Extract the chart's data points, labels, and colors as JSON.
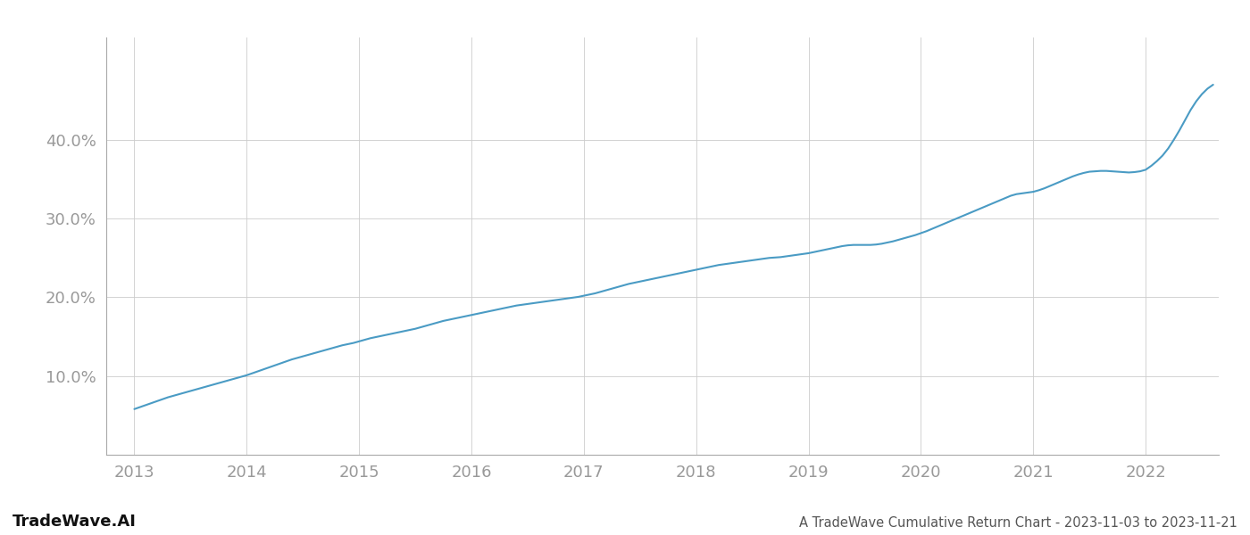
{
  "title": "A TradeWave Cumulative Return Chart - 2023-11-03 to 2023-11-21",
  "watermark": "TradeWave.AI",
  "line_color": "#4a9bc4",
  "background_color": "#ffffff",
  "grid_color": "#cccccc",
  "x_years": [
    2013,
    2014,
    2015,
    2016,
    2017,
    2018,
    2019,
    2020,
    2021,
    2022
  ],
  "data_x": [
    2013.0,
    2013.05,
    2013.1,
    2013.15,
    2013.2,
    2013.25,
    2013.3,
    2013.35,
    2013.4,
    2013.45,
    2013.5,
    2013.55,
    2013.6,
    2013.65,
    2013.7,
    2013.75,
    2013.8,
    2013.85,
    2013.9,
    2013.95,
    2014.0,
    2014.05,
    2014.1,
    2014.15,
    2014.2,
    2014.25,
    2014.3,
    2014.35,
    2014.4,
    2014.45,
    2014.5,
    2014.55,
    2014.6,
    2014.65,
    2014.7,
    2014.75,
    2014.8,
    2014.85,
    2014.9,
    2014.95,
    2015.0,
    2015.05,
    2015.1,
    2015.15,
    2015.2,
    2015.25,
    2015.3,
    2015.35,
    2015.4,
    2015.45,
    2015.5,
    2015.55,
    2015.6,
    2015.65,
    2015.7,
    2015.75,
    2015.8,
    2015.85,
    2015.9,
    2015.95,
    2016.0,
    2016.05,
    2016.1,
    2016.15,
    2016.2,
    2016.25,
    2016.3,
    2016.35,
    2016.4,
    2016.45,
    2016.5,
    2016.55,
    2016.6,
    2016.65,
    2016.7,
    2016.75,
    2016.8,
    2016.85,
    2016.9,
    2016.95,
    2017.0,
    2017.05,
    2017.1,
    2017.15,
    2017.2,
    2017.25,
    2017.3,
    2017.35,
    2017.4,
    2017.45,
    2017.5,
    2017.55,
    2017.6,
    2017.65,
    2017.7,
    2017.75,
    2017.8,
    2017.85,
    2017.9,
    2017.95,
    2018.0,
    2018.05,
    2018.1,
    2018.15,
    2018.2,
    2018.25,
    2018.3,
    2018.35,
    2018.4,
    2018.45,
    2018.5,
    2018.55,
    2018.6,
    2018.65,
    2018.7,
    2018.75,
    2018.8,
    2018.85,
    2018.9,
    2018.95,
    2019.0,
    2019.05,
    2019.1,
    2019.15,
    2019.2,
    2019.25,
    2019.3,
    2019.35,
    2019.4,
    2019.45,
    2019.5,
    2019.55,
    2019.6,
    2019.65,
    2019.7,
    2019.75,
    2019.8,
    2019.85,
    2019.9,
    2019.95,
    2020.0,
    2020.05,
    2020.1,
    2020.15,
    2020.2,
    2020.25,
    2020.3,
    2020.35,
    2020.4,
    2020.45,
    2020.5,
    2020.55,
    2020.6,
    2020.65,
    2020.7,
    2020.75,
    2020.8,
    2020.85,
    2020.9,
    2020.95,
    2021.0,
    2021.05,
    2021.1,
    2021.15,
    2021.2,
    2021.25,
    2021.3,
    2021.35,
    2021.4,
    2021.45,
    2021.5,
    2021.55,
    2021.6,
    2021.65,
    2021.7,
    2021.75,
    2021.8,
    2021.85,
    2021.9,
    2021.95,
    2022.0,
    2022.05,
    2022.1,
    2022.15,
    2022.2,
    2022.25,
    2022.3,
    2022.35,
    2022.4,
    2022.45,
    2022.5,
    2022.55,
    2022.6
  ],
  "data_y": [
    5.8,
    6.05,
    6.3,
    6.55,
    6.8,
    7.05,
    7.3,
    7.5,
    7.7,
    7.9,
    8.1,
    8.3,
    8.5,
    8.7,
    8.9,
    9.1,
    9.3,
    9.5,
    9.7,
    9.9,
    10.1,
    10.35,
    10.6,
    10.85,
    11.1,
    11.35,
    11.6,
    11.85,
    12.1,
    12.3,
    12.5,
    12.7,
    12.9,
    13.1,
    13.3,
    13.5,
    13.7,
    13.9,
    14.05,
    14.2,
    14.4,
    14.6,
    14.8,
    14.95,
    15.1,
    15.25,
    15.4,
    15.55,
    15.7,
    15.85,
    16.0,
    16.2,
    16.4,
    16.6,
    16.8,
    17.0,
    17.15,
    17.3,
    17.45,
    17.6,
    17.75,
    17.9,
    18.05,
    18.2,
    18.35,
    18.5,
    18.65,
    18.8,
    18.95,
    19.05,
    19.15,
    19.25,
    19.35,
    19.45,
    19.55,
    19.65,
    19.75,
    19.85,
    19.95,
    20.05,
    20.2,
    20.35,
    20.5,
    20.7,
    20.9,
    21.1,
    21.3,
    21.5,
    21.7,
    21.85,
    22.0,
    22.15,
    22.3,
    22.45,
    22.6,
    22.75,
    22.9,
    23.05,
    23.2,
    23.35,
    23.5,
    23.65,
    23.8,
    23.95,
    24.1,
    24.2,
    24.3,
    24.4,
    24.5,
    24.6,
    24.7,
    24.8,
    24.9,
    25.0,
    25.05,
    25.1,
    25.2,
    25.3,
    25.4,
    25.5,
    25.6,
    25.75,
    25.9,
    26.05,
    26.2,
    26.35,
    26.5,
    26.6,
    26.65,
    26.65,
    26.65,
    26.65,
    26.7,
    26.8,
    26.95,
    27.1,
    27.3,
    27.5,
    27.7,
    27.9,
    28.15,
    28.4,
    28.7,
    29.0,
    29.3,
    29.6,
    29.9,
    30.2,
    30.5,
    30.8,
    31.1,
    31.4,
    31.7,
    32.0,
    32.3,
    32.6,
    32.9,
    33.1,
    33.2,
    33.3,
    33.4,
    33.6,
    33.85,
    34.15,
    34.45,
    34.75,
    35.05,
    35.35,
    35.6,
    35.8,
    35.95,
    36.0,
    36.05,
    36.05,
    36.0,
    35.95,
    35.9,
    35.85,
    35.9,
    36.0,
    36.2,
    36.7,
    37.3,
    38.0,
    38.9,
    40.0,
    41.2,
    42.5,
    43.8,
    44.9,
    45.8,
    46.5,
    47.0
  ],
  "yticks": [
    10.0,
    20.0,
    30.0,
    40.0
  ],
  "ylim": [
    0,
    53
  ],
  "xlim": [
    2012.75,
    2022.65
  ],
  "line_width": 1.5,
  "title_fontsize": 10.5,
  "watermark_fontsize": 13,
  "tick_fontsize": 13,
  "tick_color": "#999999",
  "spine_color": "#aaaaaa"
}
